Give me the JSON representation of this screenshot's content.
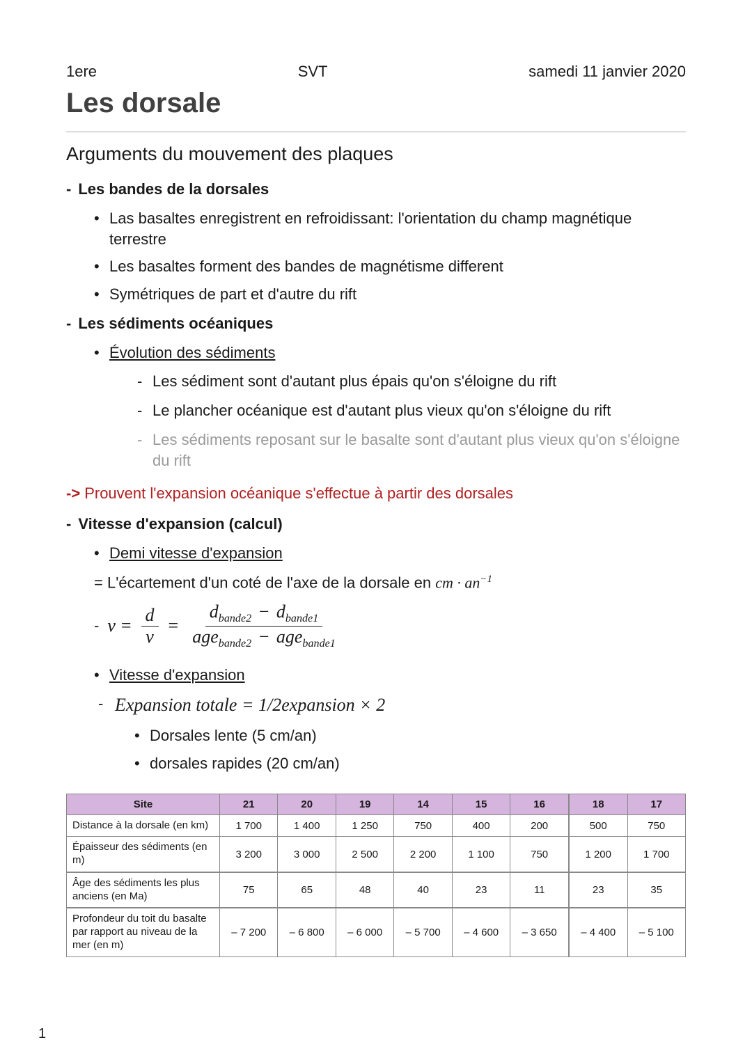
{
  "header": {
    "left": "1ere",
    "center": "SVT",
    "right": "samedi 11 janvier 2020"
  },
  "title": "Les dorsale",
  "section": "Arguments du mouvement des plaques",
  "h1": "Les bandes de la dorsales",
  "h1_items": [
    "Las basaltes enregistrent en refroidissant: l'orientation du champ magnétique terrestre",
    "Les basaltes forment des bandes de magnétisme different",
    "Symétriques de part et d'autre du rift"
  ],
  "h2": "Les sédiments océaniques",
  "h2_sub": "Évolution des sédiments",
  "h2_sub_items": [
    "Les sédiment sont d'autant plus épais qu'on s'éloigne du rift",
    "Le plancher océanique est d'autant plus vieux qu'on s'éloigne du rift"
  ],
  "h2_sub_muted": "Les sédiments reposant sur le basalte sont d'autant plus vieux qu'on s'éloigne du rift",
  "arrow": {
    "mark": "->",
    "text": "Prouvent l'expansion océanique s'effectue à partir des dorsales"
  },
  "h3": "Vitesse d'expansion (calcul)",
  "h3_sub1": "Demi vitesse d'expansion",
  "ecartement_prefix": "= L'écartement d'un coté de l'axe de la dorsale en ",
  "formula": {
    "v": "v",
    "eq": "=",
    "d": "d",
    "dbande2": "d",
    "sub_b2": "bande2",
    "dbande1": "d",
    "sub_b1": "bande1",
    "age": "age",
    "minus": "−"
  },
  "h3_sub2": "Vitesse d'expansion",
  "expansion_eq": "Expansion totale = 1/2expansion × 2",
  "speed_items": [
    "Dorsales lente (5 cm/an)",
    "dorsales rapides (20 cm/an)"
  ],
  "table": {
    "header_label": "Site",
    "sites": [
      "21",
      "20",
      "19",
      "14",
      "15",
      "16",
      "18",
      "17"
    ],
    "rows": [
      {
        "label": "Distance à la dorsale (en km)",
        "vals": [
          "1 700",
          "1 400",
          "1 250",
          "750",
          "400",
          "200",
          "500",
          "750"
        ]
      },
      {
        "label": "Épaisseur des sédiments (en m)",
        "vals": [
          "3 200",
          "3 000",
          "2 500",
          "2 200",
          "1 100",
          "750",
          "1 200",
          "1 700"
        ]
      },
      {
        "label": "Âge des sédiments les plus anciens (en Ma)",
        "vals": [
          "75",
          "65",
          "48",
          "40",
          "23",
          "11",
          "23",
          "35"
        ]
      },
      {
        "label": "Profondeur du toit du basalte par rapport au niveau de la mer (en m)",
        "vals": [
          "– 7 200",
          "– 6 800",
          "– 6 000",
          "– 5 700",
          "– 4 600",
          "– 3 650",
          "– 4 400",
          "– 5 100"
        ]
      }
    ],
    "header_bg": "#d5b4dd",
    "border_color": "#888888"
  },
  "page_number": "1"
}
